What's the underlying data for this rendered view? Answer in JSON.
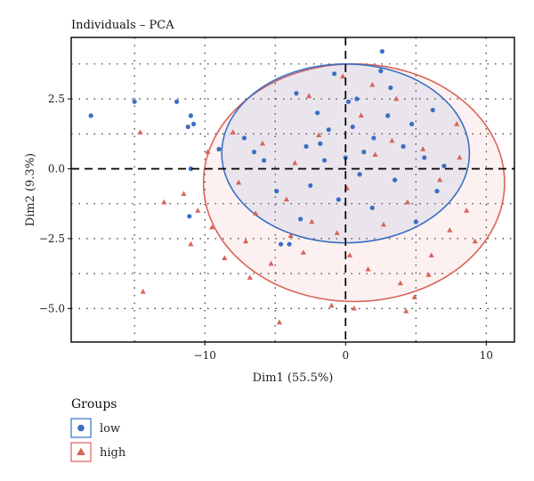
{
  "chart_data": {
    "type": "scatter",
    "title": "Individuals – PCA",
    "xlabel": "Dim1 (55.5%)",
    "ylabel": "Dim2 (9.3%)",
    "xlim": [
      -19.5,
      12
    ],
    "ylim": [
      -6.2,
      4.7
    ],
    "xticks": [
      -10,
      0,
      10
    ],
    "xtick_labels": [
      "−10",
      "0",
      "10"
    ],
    "yticks": [
      2.5,
      0.0,
      -2.5,
      -5.0
    ],
    "ytick_labels": [
      "2.5",
      "0.0",
      "−2.5",
      "−5.0"
    ],
    "grid": true,
    "legend": {
      "title": "Groups",
      "placement": "bottom-left"
    },
    "series": [
      {
        "name": "low",
        "marker": "circle",
        "color": "#3a6fc4",
        "ellipse": {
          "cx": 0.0,
          "cy": 0.55,
          "rx": 8.8,
          "ry": 3.2
        },
        "points": [
          [
            -18.1,
            1.9
          ],
          [
            -15.0,
            2.4
          ],
          [
            -12.0,
            2.4
          ],
          [
            -11.0,
            1.9
          ],
          [
            -11.2,
            1.5
          ],
          [
            -10.8,
            1.6
          ],
          [
            -11.0,
            0.0
          ],
          [
            -11.1,
            -1.7
          ],
          [
            -9.0,
            0.7
          ],
          [
            -7.2,
            1.1
          ],
          [
            -6.5,
            0.6
          ],
          [
            -5.8,
            0.3
          ],
          [
            -4.9,
            -0.8
          ],
          [
            -4.6,
            -2.7
          ],
          [
            -4.0,
            -2.7
          ],
          [
            -3.2,
            -1.8
          ],
          [
            -2.5,
            -0.6
          ],
          [
            -1.8,
            0.9
          ],
          [
            -1.2,
            1.4
          ],
          [
            -0.5,
            -1.1
          ],
          [
            0.2,
            2.4
          ],
          [
            0.8,
            2.5
          ],
          [
            1.3,
            0.6
          ],
          [
            1.9,
            -1.4
          ],
          [
            2.5,
            3.5
          ],
          [
            2.6,
            4.2
          ],
          [
            3.2,
            2.9
          ],
          [
            3.5,
            -0.4
          ],
          [
            4.1,
            0.8
          ],
          [
            4.7,
            1.6
          ],
          [
            5.0,
            -1.9
          ],
          [
            5.6,
            0.4
          ],
          [
            6.2,
            2.1
          ],
          [
            6.5,
            -0.8
          ],
          [
            7.0,
            0.1
          ],
          [
            -3.5,
            2.7
          ],
          [
            -2.0,
            2.0
          ],
          [
            -0.8,
            3.4
          ],
          [
            0.5,
            1.5
          ],
          [
            1.0,
            -0.2
          ],
          [
            2.0,
            1.1
          ],
          [
            3.0,
            1.9
          ],
          [
            -1.5,
            0.3
          ],
          [
            -2.8,
            0.8
          ],
          [
            0.0,
            0.4
          ]
        ]
      },
      {
        "name": "high",
        "marker": "triangle",
        "color": "#d9645a",
        "ellipse": {
          "cx": 0.6,
          "cy": -0.5,
          "rx": 10.7,
          "ry": 4.25
        },
        "points": [
          [
            -14.6,
            1.3
          ],
          [
            -14.4,
            -4.4
          ],
          [
            -12.9,
            -1.2
          ],
          [
            -11.5,
            -0.9
          ],
          [
            -11.0,
            -2.7
          ],
          [
            -10.5,
            -1.5
          ],
          [
            -9.8,
            0.6
          ],
          [
            -9.5,
            -2.1
          ],
          [
            -8.6,
            -3.2
          ],
          [
            -8.0,
            1.3
          ],
          [
            -7.6,
            -0.5
          ],
          [
            -7.1,
            -2.6
          ],
          [
            -6.4,
            -1.6
          ],
          [
            -5.9,
            0.9
          ],
          [
            -5.3,
            -3.4
          ],
          [
            -4.7,
            -5.5
          ],
          [
            -4.2,
            -1.1
          ],
          [
            -3.6,
            0.2
          ],
          [
            -3.0,
            -3.0
          ],
          [
            -2.4,
            -1.9
          ],
          [
            -1.9,
            1.2
          ],
          [
            -1.0,
            -4.9
          ],
          [
            -0.6,
            -2.3
          ],
          [
            0.1,
            -0.7
          ],
          [
            0.6,
            -5.0
          ],
          [
            1.1,
            1.9
          ],
          [
            1.6,
            -3.6
          ],
          [
            2.1,
            0.5
          ],
          [
            2.7,
            -2.0
          ],
          [
            3.3,
            1.0
          ],
          [
            3.9,
            -4.1
          ],
          [
            4.4,
            -1.2
          ],
          [
            4.9,
            -4.6
          ],
          [
            5.5,
            0.7
          ],
          [
            6.1,
            -3.1
          ],
          [
            6.7,
            -0.4
          ],
          [
            7.4,
            -2.2
          ],
          [
            8.1,
            0.4
          ],
          [
            8.6,
            -1.5
          ],
          [
            9.2,
            -2.6
          ],
          [
            -0.2,
            3.3
          ],
          [
            1.9,
            3.0
          ],
          [
            -2.6,
            2.6
          ],
          [
            3.6,
            2.5
          ],
          [
            4.3,
            -5.1
          ],
          [
            0.3,
            -3.1
          ],
          [
            -3.9,
            -2.4
          ],
          [
            5.9,
            -3.8
          ],
          [
            7.9,
            1.6
          ],
          [
            -6.8,
            -3.9
          ]
        ]
      }
    ]
  }
}
